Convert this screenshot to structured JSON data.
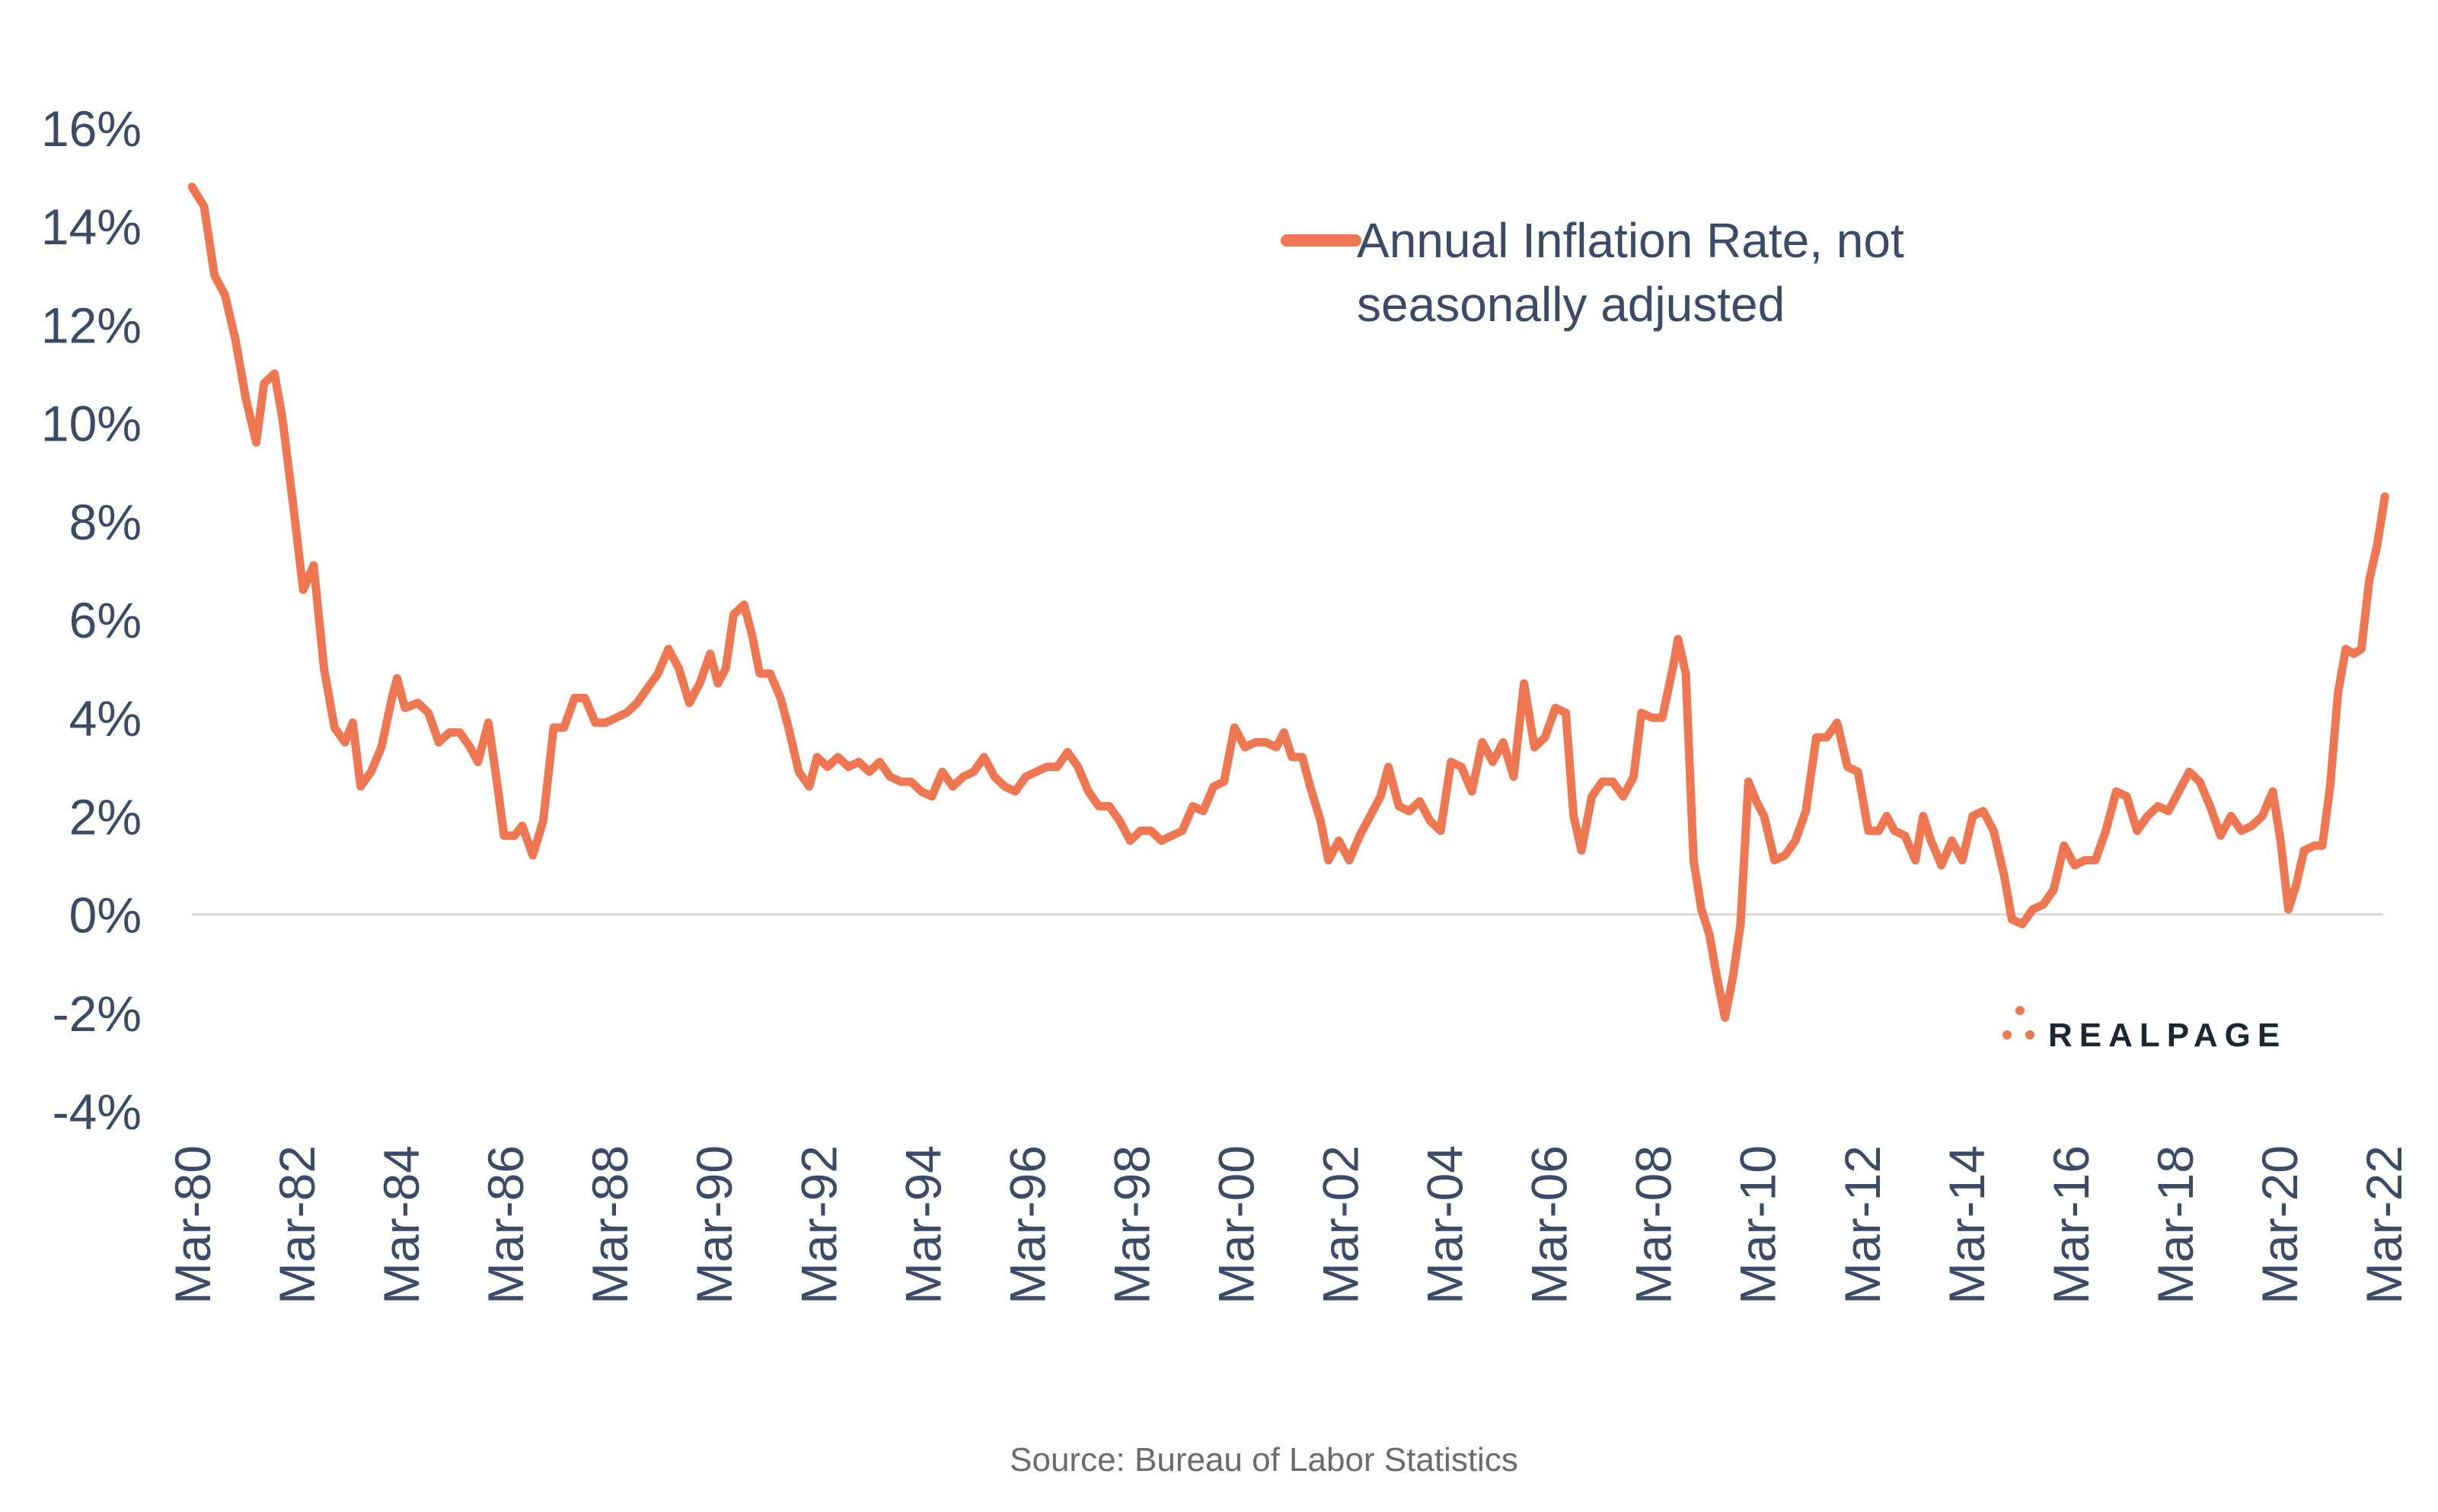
{
  "chart_data": {
    "type": "line",
    "title": "",
    "xlabel": "",
    "ylabel": "",
    "ylim": [
      -4,
      16
    ],
    "yticks": [
      "16%",
      "14%",
      "12%",
      "10%",
      "8%",
      "6%",
      "4%",
      "2%",
      "0%",
      "-2%",
      "-4%"
    ],
    "xticks": [
      "Mar-80",
      "Mar-82",
      "Mar-84",
      "Mar-86",
      "Mar-88",
      "Mar-90",
      "Mar-92",
      "Mar-94",
      "Mar-96",
      "Mar-98",
      "Mar-00",
      "Mar-02",
      "Mar-04",
      "Mar-06",
      "Mar-08",
      "Mar-10",
      "Mar-12",
      "Mar-14",
      "Mar-16",
      "Mar-18",
      "Mar-20",
      "Mar-22"
    ],
    "x_range": [
      "Mar-80",
      "Mar-22"
    ],
    "grid": false,
    "zero_line": true,
    "legend_position": "top-right",
    "series": [
      {
        "name": "Annual Inflation Rate, not seasonally adjusted",
        "color": "#ee7752",
        "points": [
          [
            1980.17,
            14.8
          ],
          [
            1980.4,
            14.4
          ],
          [
            1980.6,
            13.0
          ],
          [
            1980.8,
            12.6
          ],
          [
            1981.0,
            11.7
          ],
          [
            1981.2,
            10.5
          ],
          [
            1981.4,
            9.6
          ],
          [
            1981.55,
            10.8
          ],
          [
            1981.75,
            11.0
          ],
          [
            1981.9,
            10.1
          ],
          [
            1982.1,
            8.4
          ],
          [
            1982.3,
            6.6
          ],
          [
            1982.5,
            7.1
          ],
          [
            1982.7,
            5.0
          ],
          [
            1982.9,
            3.8
          ],
          [
            1983.1,
            3.5
          ],
          [
            1983.25,
            3.9
          ],
          [
            1983.4,
            2.6
          ],
          [
            1983.6,
            2.9
          ],
          [
            1983.8,
            3.4
          ],
          [
            1984.0,
            4.4
          ],
          [
            1984.1,
            4.8
          ],
          [
            1984.25,
            4.2
          ],
          [
            1984.5,
            4.3
          ],
          [
            1984.7,
            4.1
          ],
          [
            1984.9,
            3.5
          ],
          [
            1985.1,
            3.7
          ],
          [
            1985.3,
            3.7
          ],
          [
            1985.5,
            3.4
          ],
          [
            1985.65,
            3.1
          ],
          [
            1985.85,
            3.9
          ],
          [
            1986.0,
            2.8
          ],
          [
            1986.15,
            1.6
          ],
          [
            1986.35,
            1.6
          ],
          [
            1986.5,
            1.8
          ],
          [
            1986.7,
            1.2
          ],
          [
            1986.9,
            1.9
          ],
          [
            1987.1,
            3.8
          ],
          [
            1987.3,
            3.8
          ],
          [
            1987.5,
            4.4
          ],
          [
            1987.7,
            4.4
          ],
          [
            1987.9,
            3.9
          ],
          [
            1988.1,
            3.9
          ],
          [
            1988.3,
            4.0
          ],
          [
            1988.5,
            4.1
          ],
          [
            1988.7,
            4.3
          ],
          [
            1988.9,
            4.6
          ],
          [
            1989.1,
            4.9
          ],
          [
            1989.3,
            5.4
          ],
          [
            1989.5,
            5.0
          ],
          [
            1989.7,
            4.3
          ],
          [
            1989.9,
            4.7
          ],
          [
            1990.1,
            5.3
          ],
          [
            1990.25,
            4.7
          ],
          [
            1990.4,
            5.0
          ],
          [
            1990.55,
            6.1
          ],
          [
            1990.75,
            6.3
          ],
          [
            1990.9,
            5.7
          ],
          [
            1991.05,
            4.9
          ],
          [
            1991.25,
            4.9
          ],
          [
            1991.45,
            4.4
          ],
          [
            1991.6,
            3.8
          ],
          [
            1991.8,
            2.9
          ],
          [
            1992.0,
            2.6
          ],
          [
            1992.15,
            3.2
          ],
          [
            1992.35,
            3.0
          ],
          [
            1992.55,
            3.2
          ],
          [
            1992.75,
            3.0
          ],
          [
            1992.95,
            3.1
          ],
          [
            1993.15,
            2.9
          ],
          [
            1993.35,
            3.1
          ],
          [
            1993.55,
            2.8
          ],
          [
            1993.75,
            2.7
          ],
          [
            1993.95,
            2.7
          ],
          [
            1994.15,
            2.5
          ],
          [
            1994.35,
            2.4
          ],
          [
            1994.55,
            2.9
          ],
          [
            1994.75,
            2.6
          ],
          [
            1994.95,
            2.8
          ],
          [
            1995.15,
            2.9
          ],
          [
            1995.35,
            3.2
          ],
          [
            1995.55,
            2.8
          ],
          [
            1995.75,
            2.6
          ],
          [
            1995.95,
            2.5
          ],
          [
            1996.15,
            2.8
          ],
          [
            1996.35,
            2.9
          ],
          [
            1996.55,
            3.0
          ],
          [
            1996.75,
            3.0
          ],
          [
            1996.95,
            3.3
          ],
          [
            1997.15,
            3.0
          ],
          [
            1997.35,
            2.5
          ],
          [
            1997.55,
            2.2
          ],
          [
            1997.75,
            2.2
          ],
          [
            1997.95,
            1.9
          ],
          [
            1998.15,
            1.5
          ],
          [
            1998.35,
            1.7
          ],
          [
            1998.55,
            1.7
          ],
          [
            1998.75,
            1.5
          ],
          [
            1998.95,
            1.6
          ],
          [
            1999.15,
            1.7
          ],
          [
            1999.35,
            2.2
          ],
          [
            1999.55,
            2.1
          ],
          [
            1999.75,
            2.6
          ],
          [
            1999.95,
            2.7
          ],
          [
            2000.15,
            3.8
          ],
          [
            2000.35,
            3.4
          ],
          [
            2000.55,
            3.5
          ],
          [
            2000.75,
            3.5
          ],
          [
            2000.95,
            3.4
          ],
          [
            2001.1,
            3.7
          ],
          [
            2001.25,
            3.2
          ],
          [
            2001.45,
            3.2
          ],
          [
            2001.6,
            2.6
          ],
          [
            2001.8,
            1.9
          ],
          [
            2001.95,
            1.1
          ],
          [
            2002.15,
            1.5
          ],
          [
            2002.35,
            1.1
          ],
          [
            2002.55,
            1.6
          ],
          [
            2002.75,
            2.0
          ],
          [
            2002.95,
            2.4
          ],
          [
            2003.1,
            3.0
          ],
          [
            2003.3,
            2.2
          ],
          [
            2003.5,
            2.1
          ],
          [
            2003.7,
            2.3
          ],
          [
            2003.9,
            1.9
          ],
          [
            2004.1,
            1.7
          ],
          [
            2004.3,
            3.1
          ],
          [
            2004.5,
            3.0
          ],
          [
            2004.7,
            2.5
          ],
          [
            2004.9,
            3.5
          ],
          [
            2005.1,
            3.1
          ],
          [
            2005.3,
            3.5
          ],
          [
            2005.5,
            2.8
          ],
          [
            2005.7,
            4.7
          ],
          [
            2005.9,
            3.4
          ],
          [
            2006.1,
            3.6
          ],
          [
            2006.3,
            4.2
          ],
          [
            2006.5,
            4.1
          ],
          [
            2006.65,
            2.0
          ],
          [
            2006.8,
            1.3
          ],
          [
            2007.0,
            2.4
          ],
          [
            2007.2,
            2.7
          ],
          [
            2007.4,
            2.7
          ],
          [
            2007.6,
            2.4
          ],
          [
            2007.8,
            2.8
          ],
          [
            2007.95,
            4.1
          ],
          [
            2008.15,
            4.0
          ],
          [
            2008.35,
            4.0
          ],
          [
            2008.55,
            5.0
          ],
          [
            2008.65,
            5.6
          ],
          [
            2008.8,
            4.9
          ],
          [
            2008.95,
            1.1
          ],
          [
            2009.1,
            0.1
          ],
          [
            2009.25,
            -0.4
          ],
          [
            2009.4,
            -1.3
          ],
          [
            2009.55,
            -2.1
          ],
          [
            2009.7,
            -1.3
          ],
          [
            2009.85,
            -0.2
          ],
          [
            2010.0,
            2.7
          ],
          [
            2010.15,
            2.3
          ],
          [
            2010.3,
            2.0
          ],
          [
            2010.5,
            1.1
          ],
          [
            2010.7,
            1.2
          ],
          [
            2010.9,
            1.5
          ],
          [
            2011.1,
            2.1
          ],
          [
            2011.3,
            3.6
          ],
          [
            2011.5,
            3.6
          ],
          [
            2011.7,
            3.9
          ],
          [
            2011.9,
            3.0
          ],
          [
            2012.1,
            2.9
          ],
          [
            2012.3,
            1.7
          ],
          [
            2012.5,
            1.7
          ],
          [
            2012.65,
            2.0
          ],
          [
            2012.8,
            1.7
          ],
          [
            2013.0,
            1.6
          ],
          [
            2013.2,
            1.1
          ],
          [
            2013.35,
            2.0
          ],
          [
            2013.5,
            1.5
          ],
          [
            2013.7,
            1.0
          ],
          [
            2013.9,
            1.5
          ],
          [
            2014.1,
            1.1
          ],
          [
            2014.3,
            2.0
          ],
          [
            2014.5,
            2.1
          ],
          [
            2014.7,
            1.7
          ],
          [
            2014.9,
            0.8
          ],
          [
            2015.05,
            -0.1
          ],
          [
            2015.25,
            -0.2
          ],
          [
            2015.45,
            0.1
          ],
          [
            2015.65,
            0.2
          ],
          [
            2015.85,
            0.5
          ],
          [
            2016.05,
            1.4
          ],
          [
            2016.25,
            1.0
          ],
          [
            2016.45,
            1.1
          ],
          [
            2016.65,
            1.1
          ],
          [
            2016.85,
            1.7
          ],
          [
            2017.05,
            2.5
          ],
          [
            2017.25,
            2.4
          ],
          [
            2017.45,
            1.7
          ],
          [
            2017.65,
            2.0
          ],
          [
            2017.85,
            2.2
          ],
          [
            2018.05,
            2.1
          ],
          [
            2018.25,
            2.5
          ],
          [
            2018.45,
            2.9
          ],
          [
            2018.65,
            2.7
          ],
          [
            2018.85,
            2.2
          ],
          [
            2019.05,
            1.6
          ],
          [
            2019.25,
            2.0
          ],
          [
            2019.45,
            1.7
          ],
          [
            2019.65,
            1.8
          ],
          [
            2019.85,
            2.0
          ],
          [
            2020.05,
            2.5
          ],
          [
            2020.2,
            1.5
          ],
          [
            2020.35,
            0.1
          ],
          [
            2020.5,
            0.6
          ],
          [
            2020.65,
            1.3
          ],
          [
            2020.85,
            1.4
          ],
          [
            2021.0,
            1.4
          ],
          [
            2021.15,
            2.6
          ],
          [
            2021.3,
            4.5
          ],
          [
            2021.45,
            5.4
          ],
          [
            2021.6,
            5.3
          ],
          [
            2021.75,
            5.4
          ],
          [
            2021.9,
            6.8
          ],
          [
            2022.05,
            7.5
          ],
          [
            2022.2,
            8.5
          ]
        ]
      }
    ],
    "source": "Source: Bureau of Labor Statistics",
    "brand": "REALPAGE"
  }
}
